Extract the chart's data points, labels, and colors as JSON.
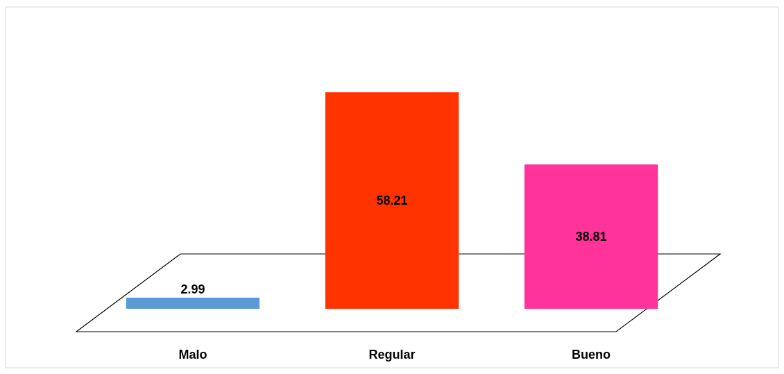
{
  "chart_data": {
    "type": "bar",
    "categories": [
      "Malo",
      "Regular",
      "Bueno"
    ],
    "values": [
      2.99,
      58.21,
      38.81
    ],
    "colors": [
      "#5b9bd5",
      "#ff3300",
      "#ff3399"
    ],
    "data_labels": true
  }
}
